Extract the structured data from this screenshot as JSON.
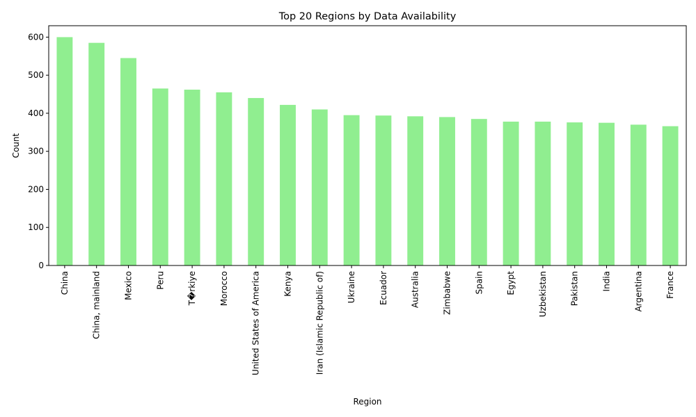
{
  "chart_data": {
    "type": "bar",
    "title": "Top 20 Regions by Data Availability",
    "xlabel": "Region",
    "ylabel": "Count",
    "categories": [
      "China",
      "China, mainland",
      "Mexico",
      "Peru",
      "T�rkiye",
      "Morocco",
      "United States of America",
      "Kenya",
      "Iran (Islamic Republic of)",
      "Ukraine",
      "Ecuador",
      "Australia",
      "Zimbabwe",
      "Spain",
      "Egypt",
      "Uzbekistan",
      "Pakistan",
      "India",
      "Argentina",
      "France"
    ],
    "values": [
      600,
      585,
      545,
      465,
      462,
      455,
      440,
      422,
      410,
      395,
      394,
      392,
      390,
      385,
      378,
      378,
      376,
      375,
      370,
      366
    ],
    "ylim": [
      0,
      630
    ],
    "yticks": [
      "0",
      "100",
      "200",
      "300",
      "400",
      "500",
      "600"
    ],
    "bar_color": "#90ee90",
    "grid": false,
    "legend": "none"
  }
}
